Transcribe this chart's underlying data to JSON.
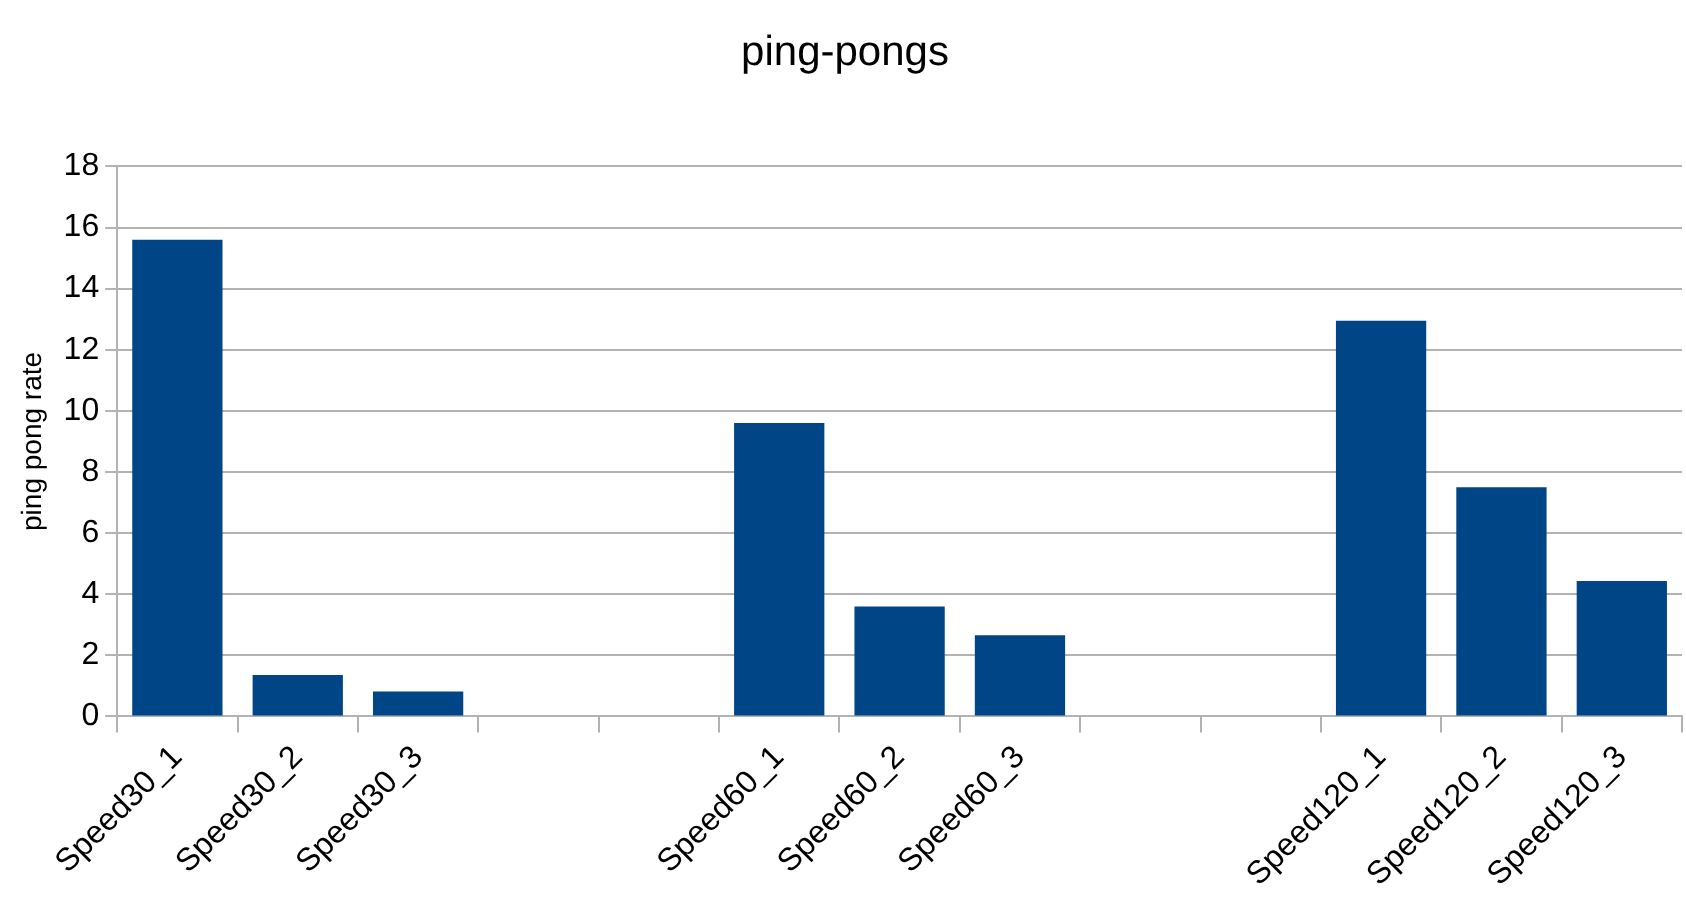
{
  "chart_data": {
    "type": "bar",
    "title": "ping-pongs",
    "ylabel": "ping pong rate",
    "categories": [
      "Speed30_1",
      "Speed30_2",
      "Speed30_3",
      null,
      null,
      "Speed60_1",
      "Speed60_2",
      "Speed60_3",
      null,
      null,
      "Speed120_1",
      "Speed120_2",
      "Speed120_3"
    ],
    "values": [
      15.6,
      1.36,
      0.82,
      null,
      null,
      9.6,
      3.6,
      2.66,
      null,
      null,
      12.95,
      7.5,
      4.43
    ],
    "color": "#004586",
    "ylim": [
      0,
      18
    ],
    "yticks": [
      0,
      2,
      4,
      6,
      8,
      10,
      12,
      14,
      16,
      18
    ],
    "grid": "y",
    "legend": false
  }
}
